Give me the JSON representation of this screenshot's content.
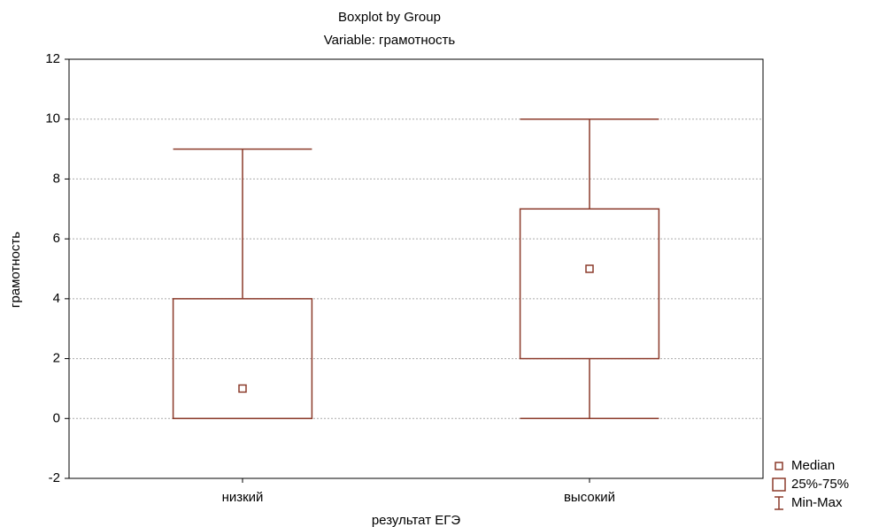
{
  "chart_data": {
    "type": "box",
    "title": "Boxplot by Group",
    "subtitle": "Variable: грамотность",
    "x_label": "результат ЕГЭ",
    "y_label": "грамотность",
    "categories": [
      "низкий",
      "высокий"
    ],
    "min": [
      0,
      0
    ],
    "q1": [
      0,
      2
    ],
    "median": [
      1,
      5
    ],
    "q3": [
      4,
      7
    ],
    "max": [
      9,
      10
    ],
    "color": "#8b3a2a",
    "ylim": [
      -2,
      12
    ],
    "yticks": [
      -2,
      0,
      2,
      4,
      6,
      8,
      10,
      12
    ],
    "grid": true,
    "legend": [
      "Median",
      "25%-75%",
      "Min-Max"
    ],
    "legend_position": "lower right"
  }
}
